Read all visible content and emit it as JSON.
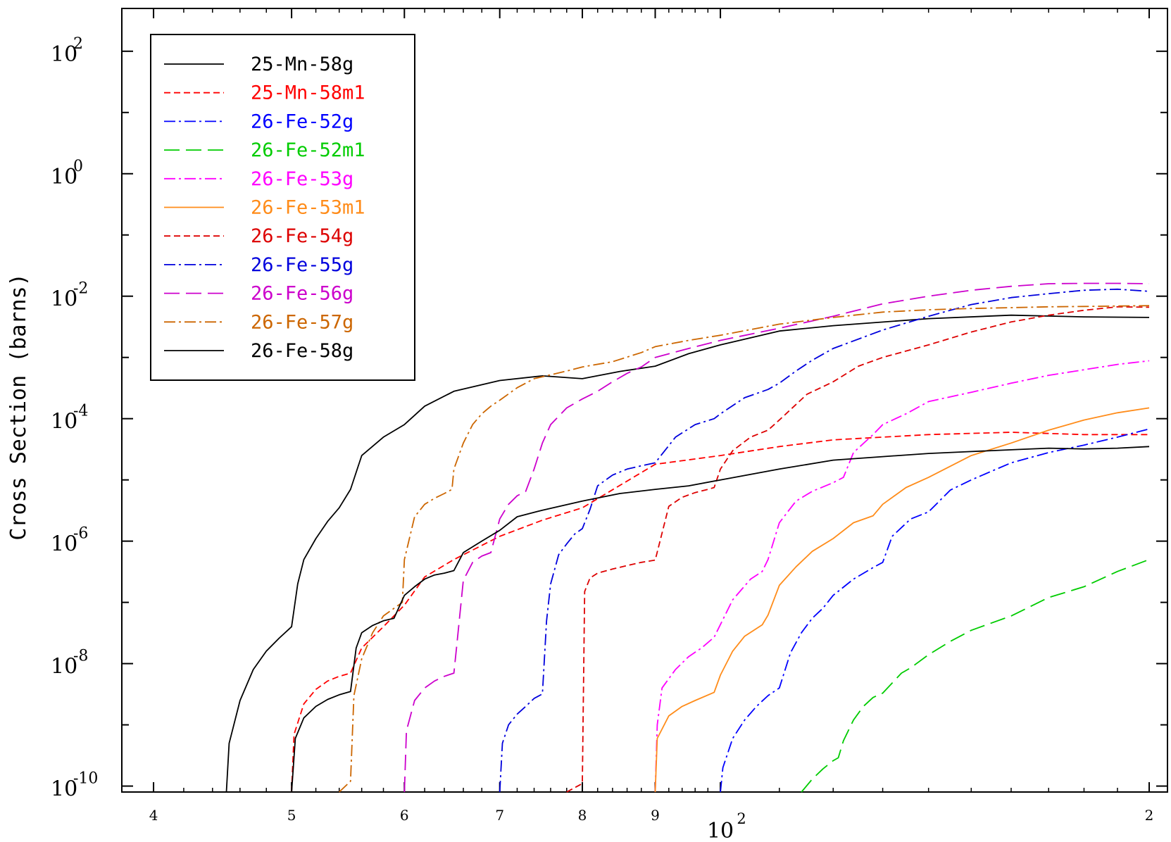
{
  "chart_data": {
    "type": "line",
    "title": "",
    "xlabel": "",
    "ylabel": "Cross Section (barns)",
    "x_scale": "log",
    "y_scale": "log",
    "xlim": [
      38,
      206
    ],
    "ylim": [
      8e-11,
      500
    ],
    "x_tick_labels": [
      {
        "value": 40,
        "label": "4"
      },
      {
        "value": 50,
        "label": "5"
      },
      {
        "value": 60,
        "label": "6"
      },
      {
        "value": 70,
        "label": "7"
      },
      {
        "value": 80,
        "label": "8"
      },
      {
        "value": 90,
        "label": "9"
      },
      {
        "value": 100,
        "label": "10",
        "exp": "2"
      },
      {
        "value": 200,
        "label": "2"
      }
    ],
    "y_tick_labels": [
      {
        "value": 1e-10,
        "base": "10",
        "exp": "-10"
      },
      {
        "value": 1e-08,
        "base": "10",
        "exp": "-8"
      },
      {
        "value": 1e-06,
        "base": "10",
        "exp": "-6"
      },
      {
        "value": 0.0001,
        "base": "10",
        "exp": "-4"
      },
      {
        "value": 0.01,
        "base": "10",
        "exp": "-2"
      },
      {
        "value": 1,
        "base": "10",
        "exp": "0"
      },
      {
        "value": 100,
        "base": "10",
        "exp": "2"
      }
    ],
    "legend_position": "top-left",
    "grid": false,
    "series": [
      {
        "name": "25-Mn-58g",
        "color": "#000000",
        "dash": "solid",
        "x": [
          45,
          45.2,
          46,
          47,
          48,
          49,
          50,
          50.5,
          51,
          52,
          53,
          54,
          55,
          56,
          58,
          60,
          62,
          65,
          70,
          75,
          80,
          85,
          90,
          95,
          100,
          110,
          120,
          140,
          160,
          180,
          200
        ],
        "y": [
          8e-11,
          5e-10,
          2.5e-09,
          8e-09,
          1.6e-08,
          2.6e-08,
          4e-08,
          2e-07,
          5e-07,
          1.1e-06,
          2.1e-06,
          3.5e-06,
          7e-06,
          2.5e-05,
          5e-05,
          8e-05,
          0.00016,
          0.00028,
          0.00042,
          0.0005,
          0.00045,
          0.00059,
          0.00072,
          0.00115,
          0.0016,
          0.0027,
          0.0033,
          0.0043,
          0.0049,
          0.0046,
          0.0045
        ]
      },
      {
        "name": "25-Mn-58m1",
        "color": "#ff0000",
        "dash": "dash",
        "x": [
          50,
          50.2,
          51,
          52,
          53,
          54,
          55,
          56,
          58,
          60,
          62,
          65,
          70,
          75,
          80,
          90,
          100,
          110,
          120,
          140,
          160,
          180,
          200
        ],
        "y": [
          8e-11,
          7e-10,
          2.2e-09,
          3.8e-09,
          5.2e-09,
          6.2e-09,
          7e-09,
          1.8e-08,
          4e-08,
          9e-08,
          2.6e-07,
          5e-07,
          1.2e-06,
          2.2e-06,
          3.5e-06,
          1.8e-05,
          2.5e-05,
          3.5e-05,
          4.5e-05,
          5.5e-05,
          6e-05,
          5.5e-05,
          5.5e-05
        ]
      },
      {
        "name": "26-Fe-52g",
        "color": "#0000ff",
        "dash": "dashdot",
        "x": [
          100,
          100.4,
          102,
          104,
          106,
          108,
          110,
          112,
          114,
          116,
          118,
          120,
          124,
          128,
          130,
          132,
          136,
          140,
          145,
          150,
          160,
          170,
          180,
          190,
          200
        ],
        "y": [
          8e-11,
          2e-10,
          6e-10,
          1.2e-09,
          2e-09,
          3e-09,
          4e-09,
          1.5e-08,
          3.2e-08,
          5.5e-08,
          8e-08,
          1.3e-07,
          2.4e-07,
          3.7e-07,
          4.5e-07,
          1.2e-06,
          2.3e-06,
          3e-06,
          6.8e-06,
          1e-05,
          1.9e-05,
          2.8e-05,
          3.7e-05,
          5e-05,
          6.8e-05
        ]
      },
      {
        "name": "26-Fe-52m1",
        "color": "#00cc00",
        "dash": "longdash",
        "x": [
          114,
          116,
          118,
          120,
          121,
          122,
          124,
          126,
          128,
          130,
          134,
          136,
          140,
          145,
          150,
          160,
          170,
          180,
          190,
          200
        ],
        "y": [
          8e-11,
          1.3e-10,
          1.9e-10,
          2.6e-10,
          2.9e-10,
          5.5e-10,
          1.2e-09,
          2e-09,
          2.8e-09,
          3.3e-09,
          7e-09,
          8.5e-09,
          1.4e-08,
          2.3e-08,
          3.5e-08,
          6e-08,
          1.2e-07,
          1.8e-07,
          3.2e-07,
          5e-07
        ]
      },
      {
        "name": "26-Fe-53g",
        "color": "#ff00ff",
        "dash": "dashdot",
        "x": [
          90,
          90.3,
          91,
          93,
          95,
          97,
          99,
          102,
          105,
          107,
          108,
          110,
          113,
          116,
          120,
          122,
          124,
          128,
          130,
          135,
          140,
          150,
          160,
          170,
          180,
          190,
          200
        ],
        "y": [
          8e-11,
          1e-09,
          4e-09,
          8e-09,
          1.3e-08,
          1.8e-08,
          2.7e-08,
          1.1e-07,
          2.4e-07,
          3.2e-07,
          5e-07,
          2e-06,
          4.5e-06,
          6.5e-06,
          9e-06,
          1.1e-05,
          2.8e-05,
          5.5e-05,
          8e-05,
          0.00012,
          0.00019,
          0.00027,
          0.00038,
          0.00051,
          0.00063,
          0.00077,
          0.00088
        ]
      },
      {
        "name": "26-Fe-53m1",
        "color": "#ff8c1a",
        "dash": "solid",
        "x": [
          90,
          90.3,
          92,
          94,
          96,
          99,
          100,
          102,
          104,
          107,
          108,
          110,
          113,
          116,
          120,
          124,
          128,
          130,
          135,
          140,
          150,
          160,
          170,
          180,
          190,
          200
        ],
        "y": [
          8e-11,
          6e-10,
          1.4e-09,
          2e-09,
          2.5e-09,
          3.4e-09,
          6.5e-09,
          1.6e-08,
          2.8e-08,
          4.3e-08,
          6.2e-08,
          1.9e-07,
          3.8e-07,
          6.8e-07,
          1.1e-06,
          2e-06,
          2.6e-06,
          4e-06,
          7.5e-06,
          1.1e-05,
          2.5e-05,
          4e-05,
          6.5e-05,
          9.5e-05,
          0.000125,
          0.00015
        ]
      },
      {
        "name": "26-Fe-54g",
        "color": "#dd0000",
        "dash": "dash",
        "x": [
          78,
          80,
          80.3,
          81,
          82,
          84,
          86,
          88,
          90,
          92,
          94,
          96,
          98,
          99,
          100,
          102,
          105,
          108,
          110,
          115,
          120,
          125,
          130,
          140,
          150,
          160,
          170,
          180,
          190,
          200
        ],
        "y": [
          8e-11,
          1.1e-10,
          1.5e-07,
          2.5e-07,
          3e-07,
          3.5e-07,
          4e-07,
          4.5e-07,
          4.9e-07,
          3.7e-06,
          5.2e-06,
          6.2e-06,
          7e-06,
          7.5e-06,
          1.5e-05,
          3e-05,
          5e-05,
          6.5e-05,
          9.5e-05,
          0.00025,
          0.0004,
          0.00072,
          0.001,
          0.0016,
          0.0026,
          0.0038,
          0.0049,
          0.0059,
          0.0067,
          0.0066
        ]
      },
      {
        "name": "26-Fe-55g",
        "color": "#0000dd",
        "dash": "dashdot",
        "x": [
          70,
          70.3,
          71,
          72,
          73,
          74,
          75,
          75.5,
          76,
          77,
          78,
          79,
          80,
          81,
          82,
          84,
          86,
          88,
          90,
          93,
          96,
          99,
          100,
          104,
          108,
          110,
          113,
          116,
          120,
          130,
          140,
          150,
          160,
          170,
          180,
          190,
          200
        ],
        "y": [
          8e-11,
          5e-10,
          1e-09,
          1.5e-09,
          2e-09,
          2.7e-09,
          3.2e-09,
          5e-08,
          2e-07,
          6e-07,
          9e-07,
          1.3e-06,
          1.6e-06,
          3.3e-06,
          8e-06,
          1.2e-05,
          1.5e-05,
          1.7e-05,
          1.9e-05,
          5e-05,
          8e-05,
          0.0001,
          0.00012,
          0.00022,
          0.0003,
          0.00038,
          0.0006,
          0.0009,
          0.0014,
          0.0028,
          0.0047,
          0.0073,
          0.0095,
          0.011,
          0.0125,
          0.013,
          0.012
        ]
      },
      {
        "name": "26-Fe-56g",
        "color": "#cc00cc",
        "dash": "longdash",
        "x": [
          60,
          60.2,
          61,
          62,
          63,
          64,
          65,
          65.3,
          66,
          67,
          68,
          69,
          70,
          71,
          72,
          73,
          74,
          75,
          76,
          78,
          80,
          82,
          84,
          86,
          88,
          90,
          95,
          100,
          110,
          120,
          130,
          140,
          150,
          160,
          170,
          180,
          190,
          200
        ],
        "y": [
          8e-11,
          8e-10,
          2.5e-09,
          4e-09,
          5.2e-09,
          6.2e-09,
          7e-09,
          2e-08,
          2.3e-07,
          4.5e-07,
          5.7e-07,
          6.5e-07,
          2.3e-06,
          4e-06,
          5.5e-06,
          6.5e-06,
          1.5e-05,
          4e-05,
          8e-05,
          0.00015,
          0.00021,
          0.00028,
          0.0004,
          0.00055,
          0.0007,
          0.001,
          0.0014,
          0.0019,
          0.003,
          0.0047,
          0.0075,
          0.01,
          0.0125,
          0.0145,
          0.016,
          0.0162,
          0.0162,
          0.016
        ]
      },
      {
        "name": "26-Fe-57g",
        "color": "#cc6600",
        "dash": "dashdot",
        "x": [
          54,
          55,
          55.3,
          56,
          57,
          58,
          59,
          59.8,
          60,
          61,
          62,
          63,
          64,
          64.8,
          65,
          66,
          67,
          68,
          69,
          70,
          72,
          74,
          76,
          78,
          80,
          84,
          88,
          90,
          95,
          100,
          110,
          120,
          130,
          140,
          150,
          160,
          170,
          180,
          190,
          200
        ],
        "y": [
          8e-11,
          1.2e-10,
          3e-09,
          1.2e-08,
          3.2e-08,
          6e-08,
          8e-08,
          1e-07,
          5e-07,
          2.5e-06,
          4e-06,
          5e-06,
          6e-06,
          7e-06,
          1.5e-05,
          4e-05,
          8e-05,
          0.00012,
          0.00016,
          0.0002,
          0.00032,
          0.00045,
          0.00052,
          0.0006,
          0.0007,
          0.00085,
          0.0012,
          0.0015,
          0.0019,
          0.0023,
          0.0035,
          0.0045,
          0.0055,
          0.006,
          0.0063,
          0.0065,
          0.0067,
          0.0068,
          0.0069,
          0.007
        ]
      },
      {
        "name": "26-Fe-58g",
        "color": "#000000",
        "dash": "solid",
        "x": [
          50,
          50.3,
          51,
          52,
          53,
          54,
          55,
          55.5,
          56,
          57,
          58,
          59,
          60,
          61,
          62,
          63,
          64,
          65,
          66,
          68,
          70,
          72,
          75,
          80,
          85,
          90,
          95,
          100,
          110,
          120,
          130,
          140,
          150,
          160,
          170,
          180,
          190,
          200
        ],
        "y": [
          8e-11,
          6e-10,
          1.3e-09,
          2e-09,
          2.6e-09,
          3.1e-09,
          3.5e-09,
          1.8e-08,
          3.2e-08,
          4.2e-08,
          5e-08,
          5.5e-08,
          1.3e-07,
          1.8e-07,
          2.4e-07,
          2.8e-07,
          3e-07,
          3.3e-07,
          6.5e-07,
          1e-06,
          1.5e-06,
          2.5e-06,
          3.2e-06,
          4.5e-06,
          6e-06,
          7e-06,
          8e-06,
          1e-05,
          1.5e-05,
          2.1e-05,
          2.4e-05,
          2.7e-05,
          2.9e-05,
          3.1e-05,
          3.3e-05,
          3.2e-05,
          3.3e-05,
          3.5e-05
        ]
      }
    ]
  }
}
